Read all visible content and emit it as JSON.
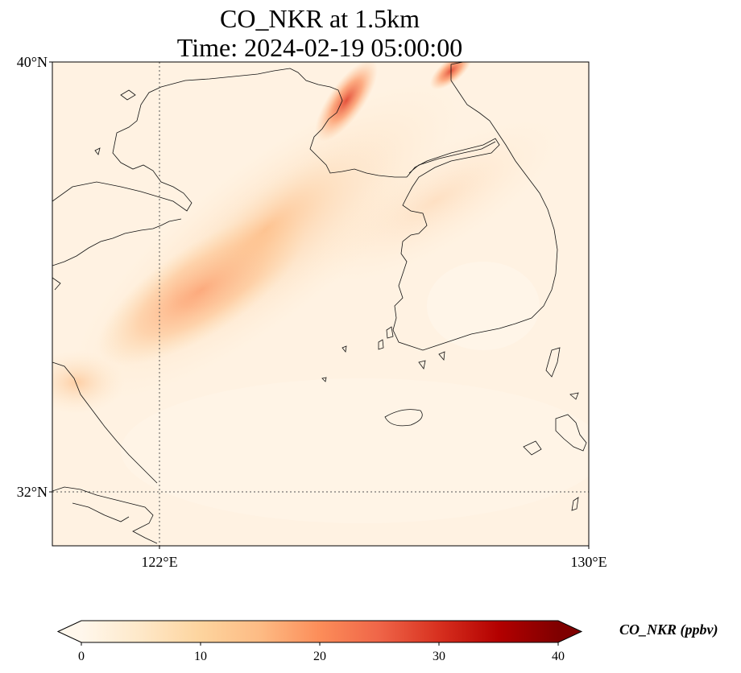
{
  "title": {
    "line1": "CO_NKR at 1.5km",
    "line2": "Time: 2024-02-19 05:00:00"
  },
  "map": {
    "lon_range": [
      120,
      130
    ],
    "lat_range": [
      31,
      40
    ],
    "lon_gridlines": [
      122
    ],
    "lat_gridlines": [
      32
    ],
    "lon_tick_labels": [
      {
        "value": 122,
        "label": "122°E"
      },
      {
        "value": 130,
        "label": "130°E"
      }
    ],
    "lat_tick_labels": [
      {
        "value": 40,
        "label": "40°N"
      },
      {
        "value": 32,
        "label": "32°N"
      }
    ],
    "colormap": "OrRd"
  },
  "colorbar": {
    "label": "CO_NKR (ppbv)",
    "min": 0,
    "max": 40,
    "extend": "both",
    "ticks": [
      {
        "value": 0,
        "label": "0"
      },
      {
        "value": 10,
        "label": "10"
      },
      {
        "value": 20,
        "label": "20"
      },
      {
        "value": 30,
        "label": "30"
      },
      {
        "value": 40,
        "label": "40"
      }
    ],
    "colors": [
      "#fff7ec",
      "#fee8c8",
      "#fdd49e",
      "#fdbb84",
      "#fc8d59",
      "#ef6548",
      "#d7301f",
      "#b30000",
      "#7f0000"
    ]
  }
}
